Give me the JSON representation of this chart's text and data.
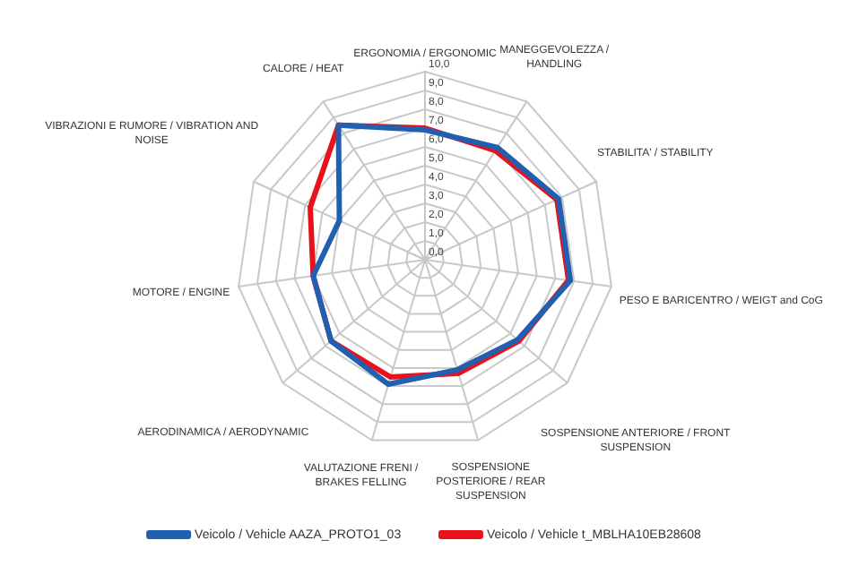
{
  "chart_data": {
    "type": "radar",
    "categories": [
      "ERGONOMIA / ERGONOMIC",
      "MANEGGEVOLEZZA / HANDLING",
      "STABILITA' / STABILITY",
      "PESO E BARICENTRO / WEIGT and CoG",
      "SOSPENSIONE ANTERIORE / FRONT SUSPENSION",
      "SOSPENSIONE POSTERIORE / REAR SUSPENSION",
      "VALUTAZIONE FRENI / BRAKES FELLING",
      "AERODINAMICA / AERODYNAMIC",
      "MOTORE / ENGINE",
      "VIBRAZIONI E RUMORE / VIBRATION AND NOISE",
      "CALORE / HEAT"
    ],
    "series": [
      {
        "name": "Veicolo / Vehicle AAZA_PROTO1_03",
        "color": "#2160b0",
        "values": [
          6.9,
          7.1,
          7.8,
          7.8,
          6.5,
          6.1,
          6.9,
          6.6,
          6.0,
          5.0,
          8.5
        ]
      },
      {
        "name": "Veicolo / Vehicle t_MBLHA10EB28608",
        "color": "#e8121c",
        "values": [
          7.0,
          6.9,
          7.7,
          7.7,
          6.6,
          6.3,
          6.5,
          6.6,
          6.0,
          6.7,
          8.5
        ]
      }
    ],
    "ylim": [
      0,
      10
    ],
    "yticks": [
      {
        "value": 0,
        "label": "0,0"
      },
      {
        "value": 1,
        "label": "1,0"
      },
      {
        "value": 2,
        "label": "2,0"
      },
      {
        "value": 3,
        "label": "3,0"
      },
      {
        "value": 4,
        "label": "4,0"
      },
      {
        "value": 5,
        "label": "5,0"
      },
      {
        "value": 6,
        "label": "6,0"
      },
      {
        "value": 7,
        "label": "7,0"
      },
      {
        "value": 8,
        "label": "8,0"
      },
      {
        "value": 9,
        "label": "9,0"
      },
      {
        "value": 10,
        "label": "10,0"
      }
    ],
    "grid": true,
    "legend": "bottom",
    "marker": "none",
    "line_style": "solid"
  }
}
